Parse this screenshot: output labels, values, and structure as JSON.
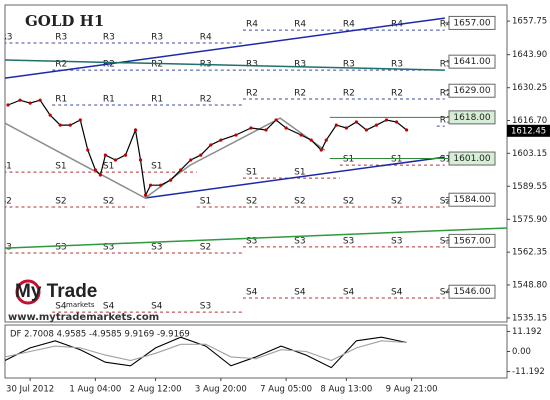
{
  "chart_data": {
    "type": "line",
    "title": "GOLD H1",
    "xlim": [
      0,
      100
    ],
    "xticks": [
      {
        "value": 5,
        "label": "30 Jul 2012"
      },
      {
        "value": 18,
        "label": "1 Aug 04:00"
      },
      {
        "value": 30,
        "label": "2 Aug 12:00"
      },
      {
        "value": 43,
        "label": "3 Aug 20:00"
      },
      {
        "value": 56,
        "label": "7 Aug 05:00"
      },
      {
        "value": 68,
        "label": "8 Aug 13:00"
      },
      {
        "value": 81,
        "label": "9 Aug 21:00"
      }
    ],
    "ylim": [
      1533.5,
      1664.4
    ],
    "yticks": [
      1657.75,
      {
        "value": 1643.9,
        "label": "1643.90"
      },
      1630.25,
      {
        "value": 1616.7,
        "label": "1616.70"
      },
      1603.15,
      1589.55,
      {
        "value": 1575.9,
        "label": "1575.90"
      },
      1562.35,
      {
        "value": 1548.8,
        "label": "1548.80"
      },
      1535.15
    ],
    "last_price": 1612.45,
    "color": "#000000",
    "x": [
      0.6,
      3,
      5,
      7,
      9,
      11,
      13,
      15,
      16.5,
      18,
      19,
      20,
      22,
      24,
      26,
      27,
      28,
      29,
      31,
      33,
      35,
      37,
      39,
      41,
      43,
      46,
      49,
      52,
      54,
      56,
      59,
      61,
      63,
      64,
      66,
      68,
      70,
      72,
      74,
      76,
      78,
      80
    ],
    "values": [
      1623.1,
      1625.1,
      1623.9,
      1625.1,
      1618.9,
      1614.8,
      1614.8,
      1616.9,
      1604.5,
      1596.3,
      1594.2,
      1602.4,
      1600.4,
      1602.4,
      1612.8,
      1600.4,
      1585.9,
      1590.0,
      1590.0,
      1592.1,
      1596.3,
      1600.4,
      1602.4,
      1606.6,
      1608.6,
      1610.7,
      1613.6,
      1612.8,
      1616.9,
      1613.6,
      1610.7,
      1608.6,
      1604.5,
      1608.6,
      1614.8,
      1613.6,
      1616.1,
      1612.8,
      1614.8,
      1616.9,
      1616.1,
      1612.8
    ],
    "trendlines": [
      {
        "color": "#1c2aa8",
        "x": [
          0,
          87.6
        ],
        "values": [
          1634.2,
          1659.0
        ]
      },
      {
        "color": "#1c2aa8",
        "x": [
          27.9,
          87.6
        ],
        "values": [
          1584.7,
          1601.6
        ]
      },
      {
        "color": "#1f6f6a",
        "x": [
          0,
          87.6
        ],
        "values": [
          1641.7,
          1637.5
        ]
      },
      {
        "color": "#2e9a3c",
        "x": [
          0,
          100
        ],
        "values": [
          1564.0,
          1572.3
        ]
      },
      {
        "color": "#8c8c8c",
        "x": [
          0,
          27.9,
          36.9,
          54.8,
          63.7
        ],
        "values": [
          1615.6,
          1584.7,
          1598.3,
          1617.7,
          1604.5
        ]
      }
    ],
    "levels": [
      {
        "value": 1657,
        "label": "1657.00",
        "color": "#000000",
        "x": 87.6
      },
      {
        "value": 1641,
        "label": "1641.00",
        "color": "#000000",
        "x": 87.6
      },
      {
        "value": 1629,
        "label": "1629.00",
        "color": "#000000",
        "x": 87.6
      },
      {
        "value": 1618,
        "label": "1618.00",
        "color": "#2e8b3a",
        "x": 64.7
      },
      {
        "value": 1601,
        "label": "1601.00",
        "color": "#2e8b3a",
        "x": 64.7
      },
      {
        "value": 1584,
        "label": "1584.00",
        "color": "#000000",
        "x": 87.6
      },
      {
        "value": 1567,
        "label": "1567.00",
        "color": "#000000",
        "x": 87.6
      },
      {
        "value": 1546,
        "label": "1546.00",
        "color": "#000000",
        "x": 87.6
      }
    ],
    "pivots": [
      {
        "x": [
          -1.5,
          9.4
        ],
        "levels": [
          {
            "name": "R3",
            "value": 1648.7
          },
          {
            "name": "S1",
            "value": 1595.4
          },
          {
            "name": "S2",
            "value": 1581.0
          },
          {
            "name": "S3",
            "value": 1562.0
          }
        ]
      },
      {
        "x": [
          9.4,
          18.9
        ],
        "levels": [
          {
            "name": "R3",
            "value": 1648.7
          },
          {
            "name": "R2",
            "value": 1637.5
          },
          {
            "name": "R1",
            "value": 1623.1
          },
          {
            "name": "S1",
            "value": 1595.4
          },
          {
            "name": "S2",
            "value": 1581.0
          },
          {
            "name": "S3",
            "value": 1562.0
          },
          {
            "name": "S4",
            "value": 1537.6
          }
        ]
      },
      {
        "x": [
          18.9,
          28.5
        ],
        "levels": [
          {
            "name": "R3",
            "value": 1648.7
          },
          {
            "name": "R2",
            "value": 1637.5
          },
          {
            "name": "R1",
            "value": 1623.1
          },
          {
            "name": "S1",
            "value": 1595.4
          },
          {
            "name": "S2",
            "value": 1581.0
          },
          {
            "name": "S3",
            "value": 1562.0
          },
          {
            "name": "S4",
            "value": 1537.6
          }
        ]
      },
      {
        "x": [
          28.5,
          38.2
        ],
        "levels": [
          {
            "name": "R3",
            "value": 1648.7
          },
          {
            "name": "R2",
            "value": 1637.5
          },
          {
            "name": "R1",
            "value": 1623.1
          },
          {
            "name": "S1",
            "value": 1595.4
          },
          {
            "name": "S3",
            "value": 1562.0
          },
          {
            "name": "S4",
            "value": 1537.6
          }
        ]
      },
      {
        "x": [
          38.2,
          47.4
        ],
        "levels": [
          {
            "name": "R4",
            "value": 1648.7
          },
          {
            "name": "R3",
            "value": 1637.5
          },
          {
            "name": "R2",
            "value": 1623.1
          },
          {
            "name": "S1",
            "value": 1581.0
          },
          {
            "name": "S2",
            "value": 1562.0
          },
          {
            "name": "S3",
            "value": 1537.6
          }
        ]
      },
      {
        "x": [
          47.4,
          57
        ],
        "levels": [
          {
            "name": "R4",
            "value": 1654.0
          },
          {
            "name": "R3",
            "value": 1637.5
          },
          {
            "name": "R2",
            "value": 1625.6
          },
          {
            "name": "S1",
            "value": 1592.9
          },
          {
            "name": "S2",
            "value": 1581.0
          },
          {
            "name": "S3",
            "value": 1564.5
          },
          {
            "name": "S4",
            "value": 1543.4
          }
        ]
      },
      {
        "x": [
          57,
          66.7
        ],
        "levels": [
          {
            "name": "R4",
            "value": 1654.0
          },
          {
            "name": "R3",
            "value": 1637.5
          },
          {
            "name": "R2",
            "value": 1625.6
          },
          {
            "name": "S1",
            "value": 1592.9
          },
          {
            "name": "S2",
            "value": 1581.0
          },
          {
            "name": "S3",
            "value": 1564.5
          },
          {
            "name": "S4",
            "value": 1543.4
          }
        ]
      },
      {
        "x": [
          66.7,
          76.3
        ],
        "levels": [
          {
            "name": "R4",
            "value": 1654.0
          },
          {
            "name": "R3",
            "value": 1637.5
          },
          {
            "name": "R2",
            "value": 1625.6
          },
          {
            "name": "S1",
            "value": 1598.3
          },
          {
            "name": "S2",
            "value": 1581.0
          },
          {
            "name": "S3",
            "value": 1564.5
          },
          {
            "name": "S4",
            "value": 1543.4
          }
        ]
      },
      {
        "x": [
          76.3,
          86
        ],
        "levels": [
          {
            "name": "R4",
            "value": 1654.0
          },
          {
            "name": "R3",
            "value": 1637.5
          },
          {
            "name": "R2",
            "value": 1625.6
          },
          {
            "name": "S1",
            "value": 1598.3
          },
          {
            "name": "S2",
            "value": 1581.0
          },
          {
            "name": "S3",
            "value": 1564.5
          },
          {
            "name": "S4",
            "value": 1543.4
          }
        ]
      },
      {
        "x": [
          86,
          87.6
        ],
        "levels": [
          {
            "name": "R4",
            "value": 1654.0
          },
          {
            "name": "R3",
            "value": 1637.5
          },
          {
            "name": "R2",
            "value": 1625.6
          },
          {
            "name": "R1",
            "value": 1614.4
          },
          {
            "name": "S1",
            "value": 1598.3
          },
          {
            "name": "S2",
            "value": 1581.0
          },
          {
            "name": "S3",
            "value": 1564.5
          },
          {
            "name": "S4",
            "value": 1543.4
          }
        ]
      }
    ],
    "watermark": "www.mytrademarkets.com",
    "logo": {
      "name": "My Trade",
      "tagline": "markets"
    },
    "indicator": {
      "label": "DF 2.7008 4.9585 -4.9585 9.9169 -9.9169",
      "ylim": [
        -14.8,
        14.8
      ],
      "yticks": [
        11.192,
        {
          "value": 0,
          "label": "0.00"
        },
        -11.192
      ],
      "x": [
        0,
        5,
        10,
        15,
        20,
        25,
        30,
        35,
        40,
        45,
        50,
        55,
        60,
        65,
        70,
        75,
        80
      ],
      "lines": [
        {
          "color": "#000000",
          "values": [
            -5,
            2,
            6,
            1,
            -6,
            -8,
            2,
            8,
            3,
            -8,
            -3,
            3,
            -2,
            -9,
            6,
            8,
            5
          ]
        },
        {
          "color": "#a0a0a0",
          "values": [
            -3,
            0,
            3,
            2,
            -2,
            -5,
            -1,
            4,
            4,
            -3,
            -4,
            1,
            0,
            -5,
            2,
            6,
            5
          ]
        }
      ]
    }
  }
}
